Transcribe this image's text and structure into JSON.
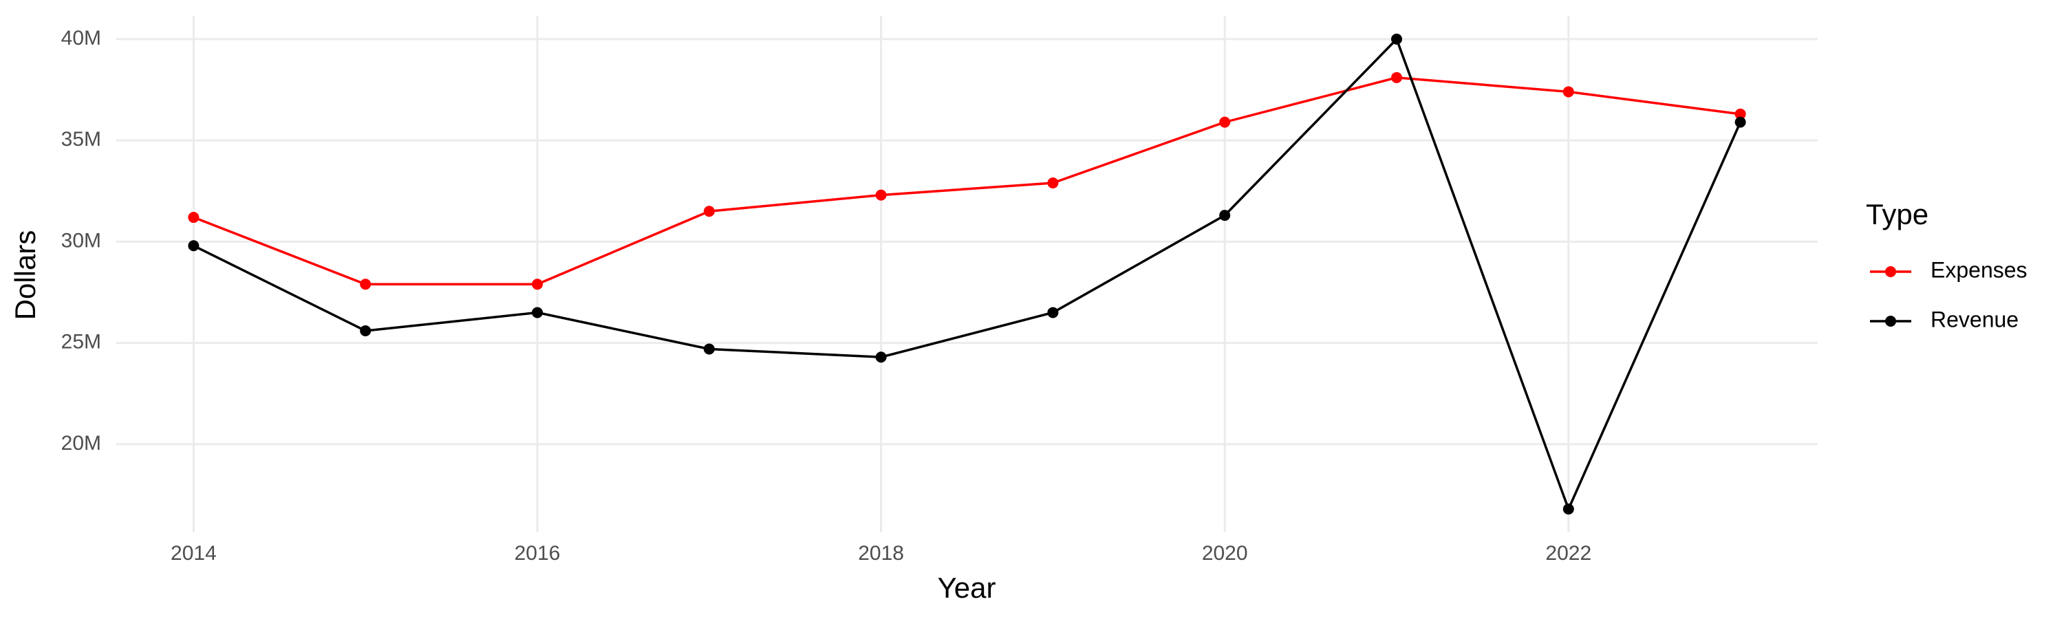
{
  "chart_data": {
    "type": "line",
    "x_label": "Year",
    "y_label": "Dollars",
    "x": [
      2014,
      2015,
      2016,
      2017,
      2018,
      2019,
      2020,
      2021,
      2022,
      2023
    ],
    "series": [
      {
        "name": "Expenses",
        "color": "#ff0000",
        "values": [
          31200000,
          27900000,
          27900000,
          31500000,
          32300000,
          32900000,
          35900000,
          38100000,
          37400000,
          36300000
        ]
      },
      {
        "name": "Revenue",
        "color": "#000000",
        "values": [
          29800000,
          25600000,
          26500000,
          24700000,
          24300000,
          26500000,
          31300000,
          40000000,
          16800000,
          35900000
        ]
      }
    ],
    "xlim": [
      2013.55,
      2023.45
    ],
    "xticks": [
      2014,
      2016,
      2018,
      2020,
      2022
    ],
    "ylim": [
      15650000,
      41150000
    ],
    "yticks": [
      {
        "value": 20000000,
        "label": "20M"
      },
      {
        "value": 25000000,
        "label": "25M"
      },
      {
        "value": 30000000,
        "label": "30M"
      },
      {
        "value": 35000000,
        "label": "35M"
      },
      {
        "value": 40000000,
        "label": "40M"
      }
    ],
    "grid": true,
    "legend_title": "Type",
    "legend_position": "right"
  }
}
